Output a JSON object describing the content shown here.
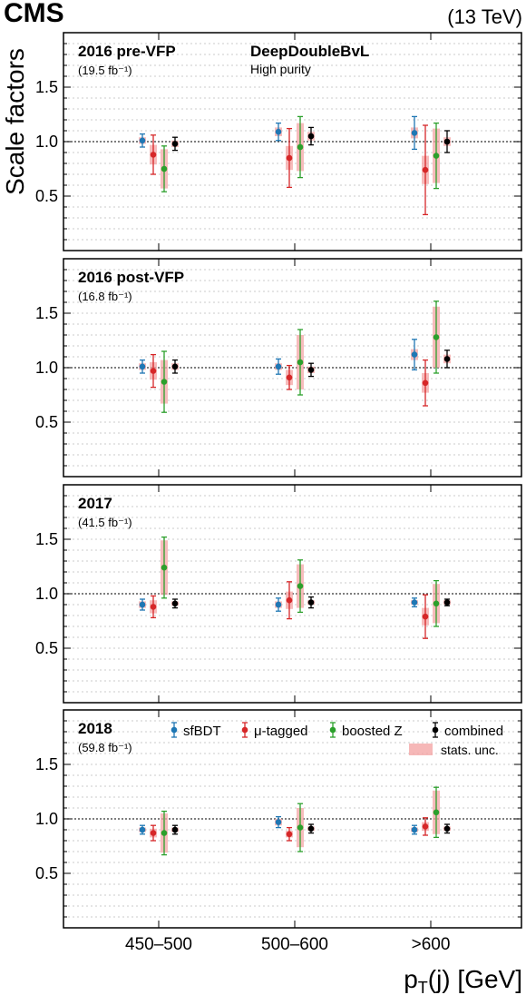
{
  "header": {
    "experiment": "CMS",
    "energy": "(13 TeV)"
  },
  "axes": {
    "ylabel": "Scale factors",
    "xlabel": "pT(j) [GeV]",
    "xlabel_main": "p",
    "xlabel_sub": "T",
    "xlabel_rest": "(j) [GeV]",
    "categories": [
      "450–500",
      "500–600",
      ">600"
    ],
    "y_ticks": [
      "0.5",
      "1.0",
      "1.5"
    ]
  },
  "tagger": {
    "name": "DeepDoubleBvL",
    "working_point": "High purity"
  },
  "legend": {
    "placement": "top-right (2018 panel)",
    "entries": [
      "sfBDT",
      "μ-tagged",
      "boosted Z",
      "combined"
    ],
    "stats_label": "stats. unc."
  },
  "colors": {
    "sfBDT": "#1f77b4",
    "mu_tagged": "#d62728",
    "boosted_z": "#2ca02c",
    "combined": "#000000",
    "stats_band": "#f4a6a6"
  },
  "chart_data": [
    {
      "type": "scatter",
      "title": "2016 pre-VFP",
      "subtitle": "(19.5 fb⁻¹)",
      "categories": [
        "450–500",
        "500–600",
        ">600"
      ],
      "ylim": [
        0,
        2.0
      ],
      "reference_line": 1.0,
      "series": [
        {
          "name": "sfBDT",
          "values": [
            1.01,
            1.09,
            1.08
          ],
          "err": [
            0.06,
            0.08,
            0.15
          ],
          "stat": [
            0.03,
            0.04,
            0.05
          ]
        },
        {
          "name": "μ-tagged",
          "values": [
            0.88,
            0.85,
            0.74
          ],
          "err": [
            0.18,
            0.27,
            0.41
          ],
          "stat": [
            0.09,
            0.11,
            0.13
          ]
        },
        {
          "name": "boosted Z",
          "values": [
            0.75,
            0.95,
            0.87
          ],
          "err": [
            0.21,
            0.28,
            0.3
          ],
          "stat": [
            0.18,
            0.22,
            0.25
          ]
        },
        {
          "name": "combined",
          "values": [
            0.98,
            1.05,
            1.0
          ],
          "err": [
            0.06,
            0.08,
            0.1
          ],
          "stat": [
            0.03,
            0.04,
            0.04
          ]
        }
      ]
    },
    {
      "type": "scatter",
      "title": "2016 post-VFP",
      "subtitle": "(16.8 fb⁻¹)",
      "categories": [
        "450–500",
        "500–600",
        ">600"
      ],
      "ylim": [
        0,
        2.0
      ],
      "reference_line": 1.0,
      "series": [
        {
          "name": "sfBDT",
          "values": [
            1.01,
            1.01,
            1.12
          ],
          "err": [
            0.06,
            0.07,
            0.14
          ],
          "stat": [
            0.03,
            0.03,
            0.05
          ]
        },
        {
          "name": "μ-tagged",
          "values": [
            0.97,
            0.91,
            0.86
          ],
          "err": [
            0.15,
            0.11,
            0.21
          ],
          "stat": [
            0.08,
            0.07,
            0.09
          ]
        },
        {
          "name": "boosted Z",
          "values": [
            0.87,
            1.05,
            1.28
          ],
          "err": [
            0.28,
            0.3,
            0.33
          ],
          "stat": [
            0.2,
            0.25,
            0.28
          ]
        },
        {
          "name": "combined",
          "values": [
            1.01,
            0.98,
            1.08
          ],
          "err": [
            0.06,
            0.06,
            0.08
          ],
          "stat": [
            0.03,
            0.03,
            0.04
          ]
        }
      ]
    },
    {
      "type": "scatter",
      "title": "2017",
      "subtitle": "(41.5 fb⁻¹)",
      "categories": [
        "450–500",
        "500–600",
        ">600"
      ],
      "ylim": [
        0,
        2.0
      ],
      "reference_line": 1.0,
      "series": [
        {
          "name": "sfBDT",
          "values": [
            0.9,
            0.9,
            0.92
          ],
          "err": [
            0.05,
            0.06,
            0.04
          ],
          "stat": [
            0.03,
            0.03,
            0.02
          ]
        },
        {
          "name": "μ-tagged",
          "values": [
            0.88,
            0.94,
            0.79
          ],
          "err": [
            0.1,
            0.17,
            0.2
          ],
          "stat": [
            0.06,
            0.08,
            0.08
          ]
        },
        {
          "name": "boosted Z",
          "values": [
            1.24,
            1.07,
            0.91
          ],
          "err": [
            0.28,
            0.24,
            0.21
          ],
          "stat": [
            0.25,
            0.2,
            0.18
          ]
        },
        {
          "name": "combined",
          "values": [
            0.91,
            0.92,
            0.92
          ],
          "err": [
            0.04,
            0.05,
            0.03
          ],
          "stat": [
            0.02,
            0.02,
            0.02
          ]
        }
      ]
    },
    {
      "type": "scatter",
      "title": "2018",
      "subtitle": "(59.8 fb⁻¹)",
      "categories": [
        "450–500",
        "500–600",
        ">600"
      ],
      "ylim": [
        0,
        2.0
      ],
      "reference_line": 1.0,
      "series": [
        {
          "name": "sfBDT",
          "values": [
            0.9,
            0.97,
            0.9
          ],
          "err": [
            0.04,
            0.05,
            0.04
          ],
          "stat": [
            0.02,
            0.03,
            0.02
          ]
        },
        {
          "name": "μ-tagged",
          "values": [
            0.87,
            0.86,
            0.93
          ],
          "err": [
            0.07,
            0.06,
            0.08
          ],
          "stat": [
            0.04,
            0.03,
            0.04
          ]
        },
        {
          "name": "boosted Z",
          "values": [
            0.87,
            0.92,
            1.06
          ],
          "err": [
            0.2,
            0.22,
            0.23
          ],
          "stat": [
            0.18,
            0.18,
            0.2
          ]
        },
        {
          "name": "combined",
          "values": [
            0.9,
            0.91,
            0.91
          ],
          "err": [
            0.04,
            0.04,
            0.04
          ],
          "stat": [
            0.02,
            0.02,
            0.02
          ]
        }
      ]
    }
  ]
}
